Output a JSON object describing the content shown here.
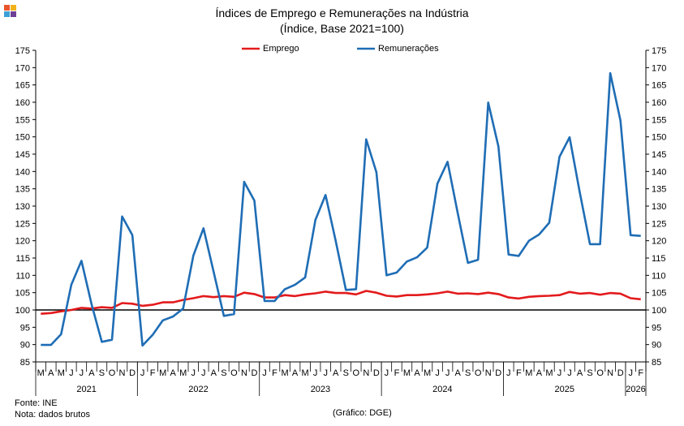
{
  "logo": {
    "icon": "dge-squares-logo",
    "colors": [
      "#e8552b",
      "#f2b21b",
      "#3aa0d6",
      "#6d3f97"
    ]
  },
  "header": {
    "title": "Índices de Emprego e Remunerações na Indústria",
    "subtitle": "(Índice, Base 2021=100)"
  },
  "footer": {
    "source": "Fonte: INE",
    "note": "Nota: dados brutos",
    "credit": "(Gráfico: DGE)"
  },
  "chart_data": {
    "type": "line",
    "title": "Índices de Emprego e Remunerações na Indústria",
    "subtitle": "(Índice, Base 2021=100)",
    "ylim": [
      85,
      175
    ],
    "yticks": [
      85,
      90,
      95,
      100,
      105,
      110,
      115,
      120,
      125,
      130,
      135,
      140,
      145,
      150,
      155,
      160,
      165,
      170,
      175
    ],
    "secondary_axis": true,
    "grid": false,
    "reference_line": 100,
    "legend_position": "top-center",
    "month_labels": [
      "M",
      "A",
      "M",
      "J",
      "J",
      "A",
      "S",
      "O",
      "N",
      "D",
      "J",
      "F",
      "M",
      "A",
      "M",
      "J",
      "J",
      "A",
      "S",
      "O",
      "N",
      "D",
      "J",
      "F",
      "M",
      "A",
      "M",
      "J",
      "J",
      "A",
      "S",
      "O",
      "N",
      "D",
      "J",
      "F",
      "M",
      "A",
      "M",
      "J",
      "J",
      "A",
      "S",
      "O",
      "N",
      "D",
      "J",
      "F",
      "M",
      "A",
      "M",
      "J",
      "J",
      "A",
      "S",
      "O",
      "N",
      "D",
      "J",
      "F"
    ],
    "years": [
      {
        "label": "2021",
        "start": 0,
        "end": 9
      },
      {
        "label": "2022",
        "start": 10,
        "end": 21
      },
      {
        "label": "2023",
        "start": 22,
        "end": 33
      },
      {
        "label": "2024",
        "start": 34,
        "end": 45
      },
      {
        "label": "2025",
        "start": 46,
        "end": 57
      },
      {
        "label": "2026",
        "start": 58,
        "end": 59
      }
    ],
    "series": [
      {
        "name": "Emprego",
        "color": "#e31a1c",
        "values": [
          98.9,
          99.1,
          99.6,
          100.0,
          100.6,
          100.4,
          100.8,
          100.6,
          102.0,
          101.8,
          101.2,
          101.5,
          102.2,
          102.2,
          102.9,
          103.4,
          104.0,
          103.7,
          104.0,
          103.8,
          105.0,
          104.6,
          103.6,
          103.6,
          104.3,
          104.0,
          104.5,
          104.8,
          105.3,
          104.9,
          104.9,
          104.5,
          105.5,
          105.0,
          104.1,
          103.9,
          104.3,
          104.3,
          104.5,
          104.8,
          105.3,
          104.7,
          104.8,
          104.6,
          105.0,
          104.6,
          103.6,
          103.3,
          103.8,
          104.0,
          104.1,
          104.3,
          105.2,
          104.7,
          104.9,
          104.4,
          104.9,
          104.7,
          103.4,
          103.1
        ]
      },
      {
        "name": "Remunerações",
        "color": "#1f6db5",
        "values": [
          89.9,
          89.9,
          93.0,
          107.3,
          114.2,
          101.6,
          90.8,
          91.4,
          127.0,
          121.6,
          89.7,
          92.8,
          97.0,
          98.1,
          100.4,
          115.7,
          123.6,
          111.0,
          98.3,
          98.8,
          137.0,
          131.6,
          102.6,
          102.6,
          106.0,
          107.3,
          109.4,
          126.0,
          133.2,
          120.0,
          105.8,
          106.0,
          149.3,
          139.8,
          110.0,
          110.8,
          114.0,
          115.2,
          118.0,
          136.5,
          142.8,
          128.0,
          113.6,
          114.5,
          159.9,
          147.2,
          116.0,
          115.6,
          120.0,
          121.8,
          125.2,
          144.2,
          149.9,
          134.0,
          119.0,
          119.0,
          168.4,
          154.7,
          121.6,
          121.4
        ]
      }
    ]
  }
}
